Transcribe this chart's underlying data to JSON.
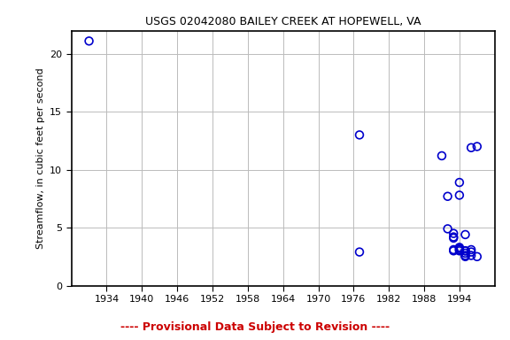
{
  "title": "USGS 02042080 BAILEY CREEK AT HOPEWELL, VA",
  "ylabel": "Streamflow, in cubic feet per second",
  "disclaimer": "---- Provisional Data Subject to Revision ----",
  "xlim": [
    1928,
    2000
  ],
  "ylim": [
    0,
    22
  ],
  "xticks": [
    1934,
    1940,
    1946,
    1952,
    1958,
    1964,
    1970,
    1976,
    1982,
    1988,
    1994
  ],
  "yticks": [
    0,
    5,
    10,
    15,
    20
  ],
  "data_x": [
    1931,
    1977,
    1977,
    1991,
    1992,
    1992,
    1993,
    1993,
    1993,
    1993,
    1993,
    1994,
    1994,
    1994,
    1994,
    1994,
    1994,
    1995,
    1995,
    1995,
    1995,
    1995,
    1995,
    1996,
    1996,
    1996,
    1996,
    1997,
    1997
  ],
  "data_y": [
    21.1,
    13.0,
    2.9,
    11.2,
    4.9,
    7.7,
    4.1,
    4.2,
    3.1,
    3.0,
    4.5,
    7.8,
    8.9,
    3.1,
    3.2,
    3.3,
    3.0,
    4.4,
    2.8,
    3.0,
    2.5,
    3.0,
    2.6,
    11.9,
    3.1,
    2.9,
    2.6,
    12.0,
    2.5
  ],
  "marker_color": "#0000CC",
  "marker_size": 40,
  "marker_lw": 1.2,
  "bg_color": "#ffffff",
  "grid_color": "#bbbbbb",
  "disclaimer_color": "#cc0000",
  "title_color": "#000000",
  "title_fontsize": 9,
  "ylabel_fontsize": 8,
  "tick_fontsize": 8,
  "disclaimer_fontsize": 9
}
